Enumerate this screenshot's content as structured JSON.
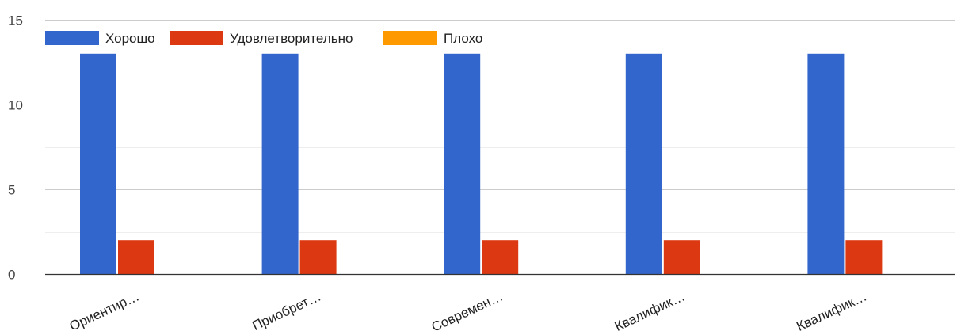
{
  "chart_data": {
    "type": "bar",
    "categories": [
      "Ориентир…",
      "Приобрет…",
      "Современ…",
      "Квалифик…",
      "Квалифик…"
    ],
    "series": [
      {
        "name": "Хорошо",
        "values": [
          13,
          13,
          13,
          13,
          13
        ],
        "color": "#3366cc"
      },
      {
        "name": "Удовлетворительно",
        "values": [
          2,
          2,
          2,
          2,
          2
        ],
        "color": "#dc3912"
      },
      {
        "name": "Плохо",
        "values": [
          0,
          0,
          0,
          0,
          0
        ],
        "color": "#ff9900"
      }
    ],
    "ylim": [
      0,
      15
    ],
    "yticks": [
      0,
      5,
      10,
      15
    ],
    "title": "",
    "xlabel": "",
    "ylabel": "",
    "grid": true,
    "legend_position": "top-left"
  }
}
